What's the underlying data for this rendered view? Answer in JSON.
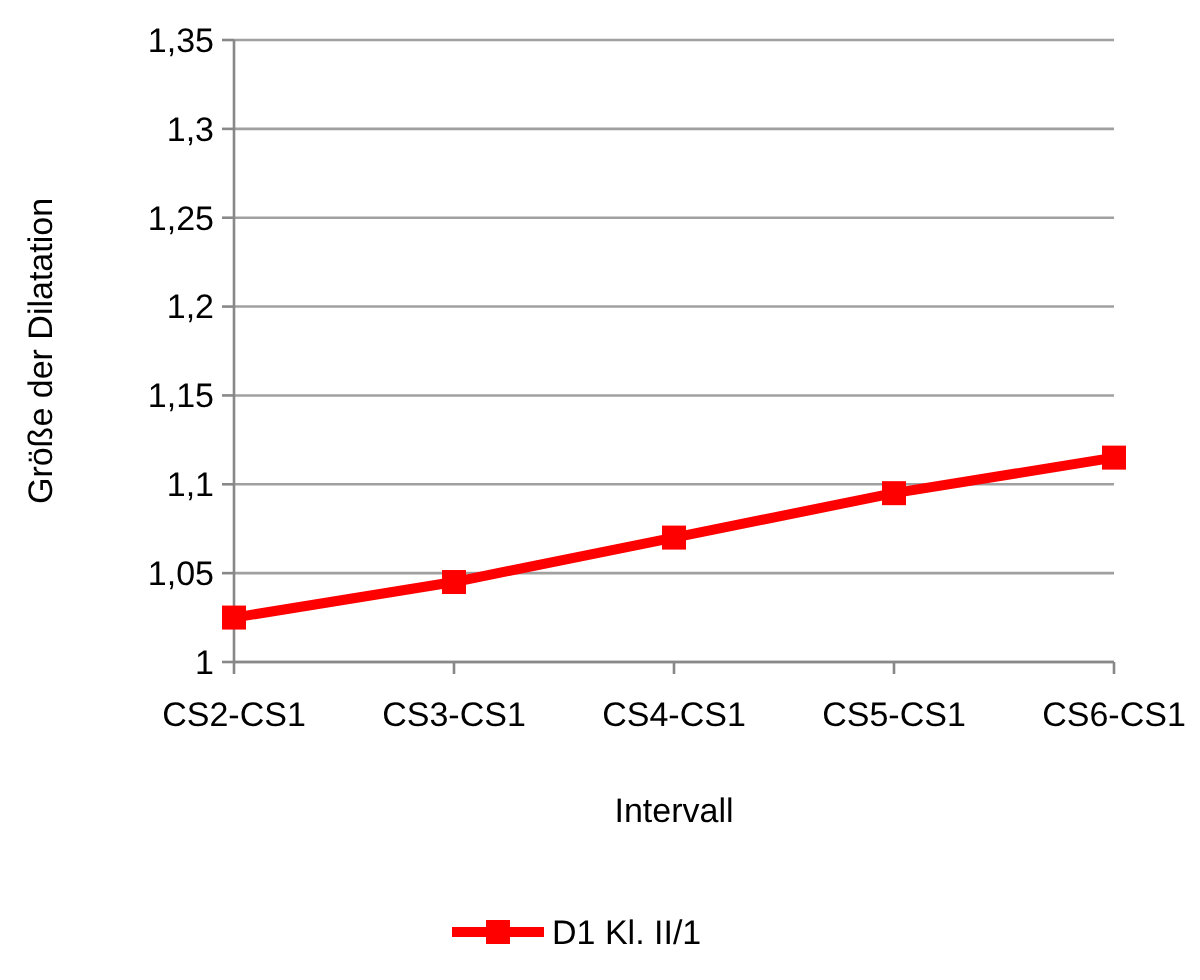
{
  "chart_data": {
    "type": "line",
    "xlabel": "Intervall",
    "ylabel": "Größe der Dilatation",
    "categories": [
      "CS2-CS1",
      "CS3-CS1",
      "CS4-CS1",
      "CS5-CS1",
      "CS6-CS1"
    ],
    "series": [
      {
        "name": "D1 Kl. II/1",
        "color": "#ff0000",
        "values": [
          1.025,
          1.045,
          1.07,
          1.095,
          1.115
        ]
      }
    ],
    "ylim": [
      1,
      1.35
    ],
    "yticks": [
      {
        "value": 1,
        "label": "1"
      },
      {
        "value": 1.05,
        "label": "1,05"
      },
      {
        "value": 1.1,
        "label": "1,1"
      },
      {
        "value": 1.15,
        "label": "1,15"
      },
      {
        "value": 1.2,
        "label": "1,2"
      },
      {
        "value": 1.25,
        "label": "1,25"
      },
      {
        "value": 1.3,
        "label": "1,3"
      },
      {
        "value": 1.35,
        "label": "1,35"
      }
    ],
    "grid": "y",
    "legend": "bottom",
    "marker": "square",
    "line_style": "solid"
  }
}
